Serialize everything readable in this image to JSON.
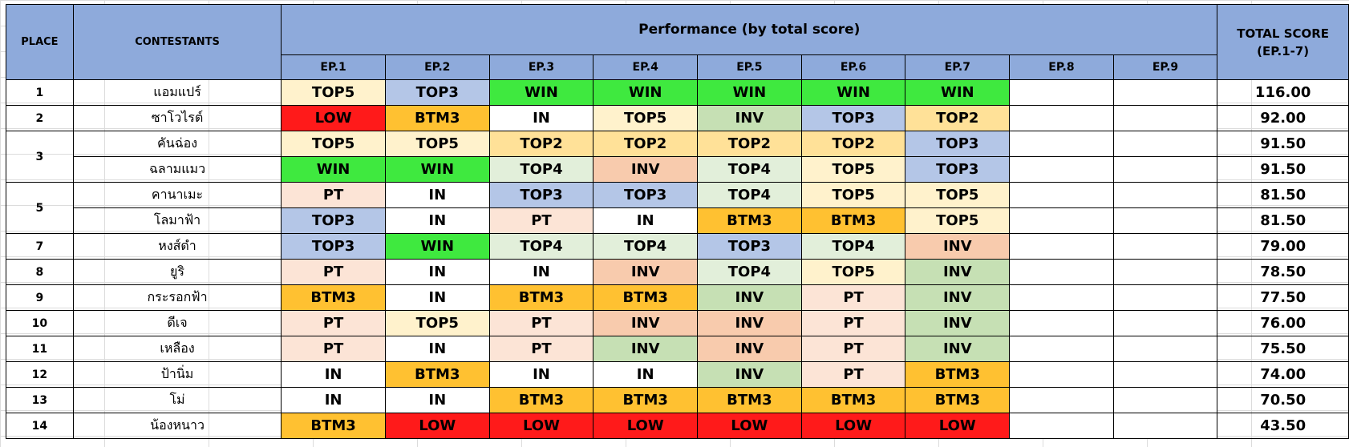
{
  "header": {
    "place": "PLACE",
    "contestants": "CONTESTANTS",
    "performance": "Performance (by total score)",
    "total_line1": "TOTAL SCORE",
    "total_line2": "(EP.1-7)",
    "episodes": [
      "EP.1",
      "EP.2",
      "EP.3",
      "EP.4",
      "EP.5",
      "EP.6",
      "EP.7",
      "EP.8",
      "EP.9"
    ]
  },
  "colors": {
    "header": "#8eaadb",
    "WIN": "#3fe93f",
    "TOP2": "#ffe198",
    "TOP3": "#b4c6e7",
    "TOP4": "#e2efda",
    "TOP5": "#fff2cc",
    "IN": "#ffffff",
    "INV": "#c6e0b4",
    "INV_alt": "#f8cbad",
    "PT": "#fce4d6",
    "BTM3": "#ffc131",
    "LOW": "#ff1a1a"
  },
  "rows": [
    {
      "place": "1",
      "name": "แอมแปร์",
      "results": [
        "TOP5",
        "TOP3",
        "WIN",
        "WIN",
        "WIN",
        "WIN",
        "WIN",
        "",
        ""
      ],
      "score": "116.00"
    },
    {
      "place": "2",
      "name": "ซาโวไรต์",
      "results": [
        "LOW",
        "BTM3",
        "IN",
        "TOP5",
        "INV",
        "TOP3",
        "TOP2",
        "",
        ""
      ],
      "score": "92.00"
    },
    {
      "place": "3",
      "name": "คันฉ่อง",
      "results": [
        "TOP5",
        "TOP5",
        "TOP2",
        "TOP2",
        "TOP2",
        "TOP2",
        "TOP3",
        "",
        ""
      ],
      "score": "91.50"
    },
    {
      "place": "",
      "name": "ฉลามแมว",
      "results": [
        "WIN",
        "WIN",
        "TOP4",
        "INV",
        "TOP4",
        "TOP5",
        "TOP3",
        "",
        ""
      ],
      "score": "91.50"
    },
    {
      "place": "5",
      "name": "คานาเมะ",
      "results": [
        "PT",
        "IN",
        "TOP3",
        "TOP3",
        "TOP4",
        "TOP5",
        "TOP5",
        "",
        ""
      ],
      "score": "81.50"
    },
    {
      "place": "",
      "name": "โลมาฟ้า",
      "results": [
        "TOP3",
        "IN",
        "PT",
        "IN",
        "BTM3",
        "BTM3",
        "TOP5",
        "",
        ""
      ],
      "score": "81.50"
    },
    {
      "place": "7",
      "name": "หงส์ดำ",
      "results": [
        "TOP3",
        "WIN",
        "TOP4",
        "TOP4",
        "TOP3",
        "TOP4",
        "INV",
        "",
        ""
      ],
      "score": "79.00"
    },
    {
      "place": "8",
      "name": "ยูริ",
      "results": [
        "PT",
        "IN",
        "IN",
        "INV",
        "TOP4",
        "TOP5",
        "INV",
        "",
        ""
      ],
      "score": "78.50"
    },
    {
      "place": "9",
      "name": "กระรอกฟ้า",
      "results": [
        "BTM3",
        "IN",
        "BTM3",
        "BTM3",
        "INV",
        "PT",
        "INV",
        "",
        ""
      ],
      "score": "77.50"
    },
    {
      "place": "10",
      "name": "ดีเจ",
      "results": [
        "PT",
        "TOP5",
        "PT",
        "INV",
        "INV",
        "PT",
        "INV",
        "",
        ""
      ],
      "score": "76.00"
    },
    {
      "place": "11",
      "name": "เหลือง",
      "results": [
        "PT",
        "IN",
        "PT",
        "INV",
        "INV",
        "PT",
        "INV",
        "",
        ""
      ],
      "score": "75.50"
    },
    {
      "place": "12",
      "name": "ป้านิ่ม",
      "results": [
        "IN",
        "BTM3",
        "IN",
        "IN",
        "INV",
        "PT",
        "BTM3",
        "",
        ""
      ],
      "score": "74.00"
    },
    {
      "place": "13",
      "name": "โม่",
      "results": [
        "IN",
        "IN",
        "BTM3",
        "BTM3",
        "BTM3",
        "BTM3",
        "BTM3",
        "",
        ""
      ],
      "score": "70.50"
    },
    {
      "place": "14",
      "name": "น้องหนาว",
      "results": [
        "BTM3",
        "LOW",
        "LOW",
        "LOW",
        "LOW",
        "LOW",
        "LOW",
        "",
        ""
      ],
      "score": "43.50"
    }
  ],
  "inv_alt_cells": [
    [
      3,
      3
    ],
    [
      7,
      3
    ],
    [
      8,
      3
    ],
    [
      9,
      3
    ],
    [
      9,
      4
    ],
    [
      10,
      4
    ],
    [
      6,
      6
    ]
  ]
}
